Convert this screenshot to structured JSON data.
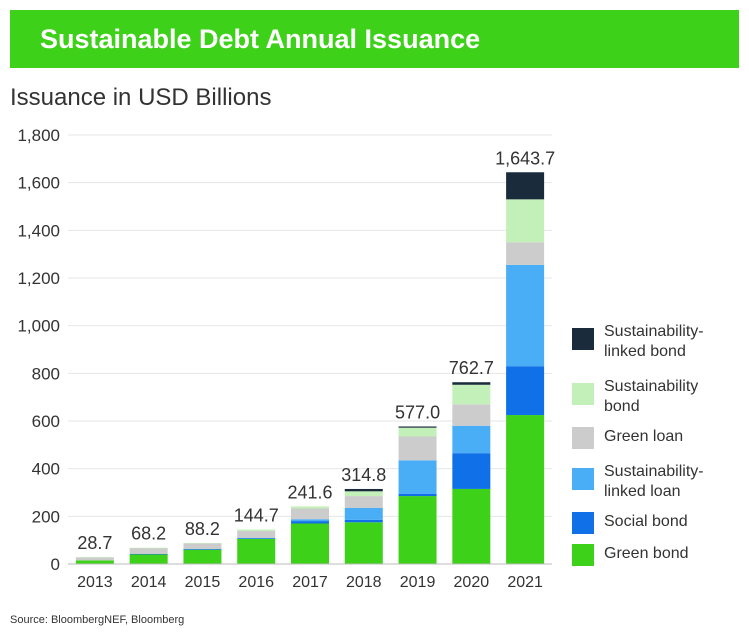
{
  "header": {
    "title": "Sustainable Debt Annual Issuance"
  },
  "subtitle": "Issuance in USD Billions",
  "source": "Source: BloombergNEF, Bloomberg",
  "chart_data": {
    "type": "bar",
    "stacked": true,
    "categories": [
      "2013",
      "2014",
      "2015",
      "2016",
      "2017",
      "2018",
      "2019",
      "2020",
      "2021"
    ],
    "ylim": [
      0,
      1800
    ],
    "yticks": [
      0,
      200,
      400,
      600,
      800,
      1000,
      1200,
      1400,
      1600,
      1800
    ],
    "ytick_labels": [
      "0",
      "200",
      "400",
      "600",
      "800",
      "1,000",
      "1,200",
      "1,400",
      "1,600",
      "1,800"
    ],
    "grid": true,
    "legend_position": "right",
    "totals": [
      28.7,
      68.2,
      88.2,
      144.7,
      241.6,
      314.8,
      577.0,
      762.7,
      1643.7
    ],
    "total_labels": [
      "28.7",
      "68.2",
      "88.2",
      "144.7",
      "241.6",
      "314.8",
      "577.0",
      "762.7",
      "1,643.7"
    ],
    "series": [
      {
        "name": "Green bond",
        "color": "#3ed11a",
        "values": [
          15,
          40,
          60,
          105,
          170,
          175,
          285,
          315,
          625
        ]
      },
      {
        "name": "Social bond",
        "color": "#1070e8",
        "values": [
          0,
          2,
          3,
          2,
          10,
          10,
          10,
          150,
          205
        ]
      },
      {
        "name": "Sustainability-linked loan",
        "color": "#4aaef7",
        "values": [
          0,
          0,
          0,
          2,
          8,
          50,
          140,
          115,
          425
        ]
      },
      {
        "name": "Green loan",
        "color": "#cccccc",
        "values": [
          13,
          25,
          23,
          30,
          45,
          50,
          100,
          90,
          95
        ]
      },
      {
        "name": "Sustainability bond",
        "color": "#c3f0b8",
        "values": [
          0.7,
          1.2,
          2.2,
          5.7,
          8.6,
          20,
          37,
          82,
          180
        ]
      },
      {
        "name": "Sustainability-linked bond",
        "color": "#1a2b3c",
        "values": [
          0,
          0,
          0,
          0,
          0,
          9.8,
          5,
          10.7,
          113.7
        ]
      }
    ]
  },
  "legend": [
    {
      "label": "Sustainability-\nlinked bond",
      "color": "#1a2b3c"
    },
    {
      "label": "Sustainability\nbond",
      "color": "#c3f0b8"
    },
    {
      "label": "Green loan",
      "color": "#cccccc"
    },
    {
      "label": "Sustainability-\nlinked loan",
      "color": "#4aaef7"
    },
    {
      "label": "Social bond",
      "color": "#1070e8"
    },
    {
      "label": "Green bond",
      "color": "#3ed11a"
    }
  ]
}
